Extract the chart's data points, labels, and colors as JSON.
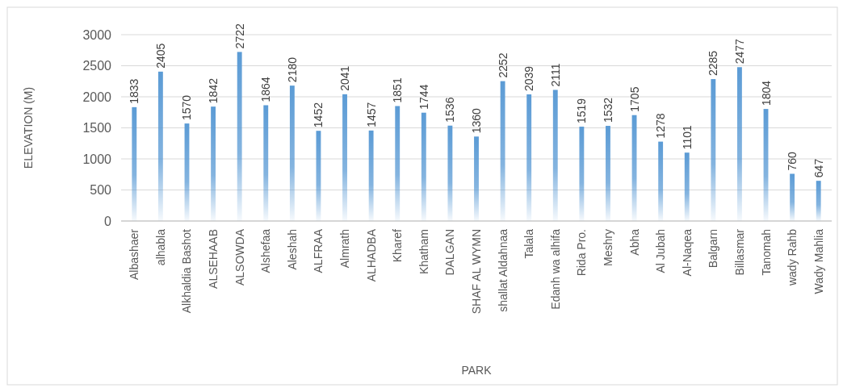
{
  "chart_data": {
    "type": "bar",
    "xlabel": "PARK",
    "ylabel": "ELEVATION (M)",
    "categories": [
      "Albashaer",
      "alhabla",
      "Alkhaldia Bashot",
      "ALSEHAAB",
      "ALSOWDA",
      "Alshefaa",
      "Aleshah",
      "ALFRAA",
      "Almrath",
      "ALHADBA",
      "Kharef",
      "Khatham",
      "DALGAN",
      "SHAF AL WYMN",
      "shallat Aldahnaa",
      "Talala",
      "Edanh wa alhifa",
      "Rida Pro.",
      "Meshry",
      "Abha",
      "Al Jubah",
      "Al-Naqea",
      "Balgarn",
      "Billasmar",
      "Tanomah",
      "wady Rahb",
      "Wady Mahlia"
    ],
    "values": [
      1833,
      2405,
      1570,
      1842,
      2722,
      1864,
      2180,
      1452,
      2041,
      1457,
      1851,
      1744,
      1536,
      1360,
      2252,
      2039,
      2111,
      1519,
      1532,
      1705,
      1278,
      1101,
      2285,
      2477,
      1804,
      760,
      647
    ],
    "color": "#5b9bd5",
    "ylim": [
      0,
      3000
    ],
    "yticks": [
      0,
      500,
      1000,
      1500,
      2000,
      2500,
      3000
    ],
    "grid": "y",
    "data_labels": true
  }
}
